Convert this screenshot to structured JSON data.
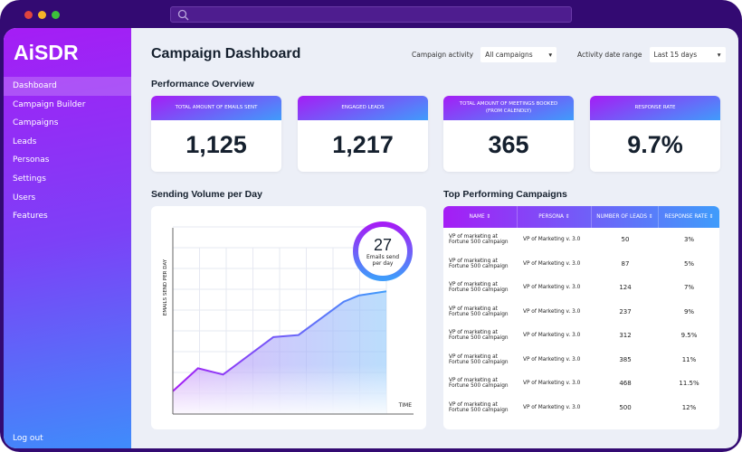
{
  "window": {
    "dots": [
      "#e0443e",
      "#f5b328",
      "#3cc13b"
    ]
  },
  "sidebar": {
    "logo": "AiSDR",
    "items": [
      {
        "label": "Dashboard",
        "active": true
      },
      {
        "label": "Campaign Builder"
      },
      {
        "label": "Campaigns"
      },
      {
        "label": "Leads"
      },
      {
        "label": "Personas"
      },
      {
        "label": "Settings"
      },
      {
        "label": "Users"
      },
      {
        "label": "Features"
      }
    ],
    "logout": "Log out"
  },
  "header": {
    "title": "Campaign Dashboard",
    "filters": [
      {
        "label": "Campaign activity",
        "value": "All campaigns"
      },
      {
        "label": "Activity date range",
        "value": "Last 15 days"
      }
    ]
  },
  "overview": {
    "title": "Performance Overview",
    "cards": [
      {
        "label": "TOTAL AMOUNT OF EMAILS SENT",
        "value": "1,125"
      },
      {
        "label": "ENGAGED LEADS",
        "value": "1,217"
      },
      {
        "label": "TOTAL AMOUNT OF MEETINGS BOOKED (FROM CALENDLY)",
        "value": "365"
      },
      {
        "label": "RESPONSE RATE",
        "value": "9.7%"
      }
    ]
  },
  "volume": {
    "title": "Sending Volume per Day",
    "badge_value": "27",
    "badge_label": "Emails send per day"
  },
  "chart_data": {
    "type": "area",
    "xlabel": "TIME",
    "ylabel": "EMAILS SEND PER DAY",
    "grid": true,
    "ylim": [
      0,
      9
    ],
    "x": [
      0,
      1,
      2,
      4,
      5,
      6.8,
      7.4,
      8.5
    ],
    "values": [
      1.1,
      2.2,
      1.9,
      3.7,
      3.8,
      5.4,
      5.7,
      5.9
    ],
    "colors": [
      "#a51df5",
      "#3f9cfb"
    ]
  },
  "table": {
    "title": "Top Performing Campaigns",
    "columns": [
      "NAME",
      "PERSONA",
      "NUMBER OF LEADS",
      "RESPONSE RATE"
    ],
    "rows": [
      [
        "VP of marketing at Fortune 500 campaign",
        "VP of Marketing v. 3.0",
        "50",
        "3%"
      ],
      [
        "VP of marketing at Fortune 500 campaign",
        "VP of Marketing v. 3.0",
        "87",
        "5%"
      ],
      [
        "VP of marketing at Fortune 500 campaign",
        "VP of Marketing v. 3.0",
        "124",
        "7%"
      ],
      [
        "VP of marketing at Fortune 500 campaign",
        "VP of Marketing v. 3.0",
        "237",
        "9%"
      ],
      [
        "VP of marketing at Fortune 500 campaign",
        "VP of Marketing v. 3.0",
        "312",
        "9.5%"
      ],
      [
        "VP of marketing at Fortune 500 campaign",
        "VP of Marketing v. 3.0",
        "385",
        "11%"
      ],
      [
        "VP of marketing at Fortune 500 campaign",
        "VP of Marketing v. 3.0",
        "468",
        "11.5%"
      ],
      [
        "VP of marketing at Fortune 500 campaign",
        "VP of Marketing v. 3.0",
        "500",
        "12%"
      ]
    ]
  }
}
